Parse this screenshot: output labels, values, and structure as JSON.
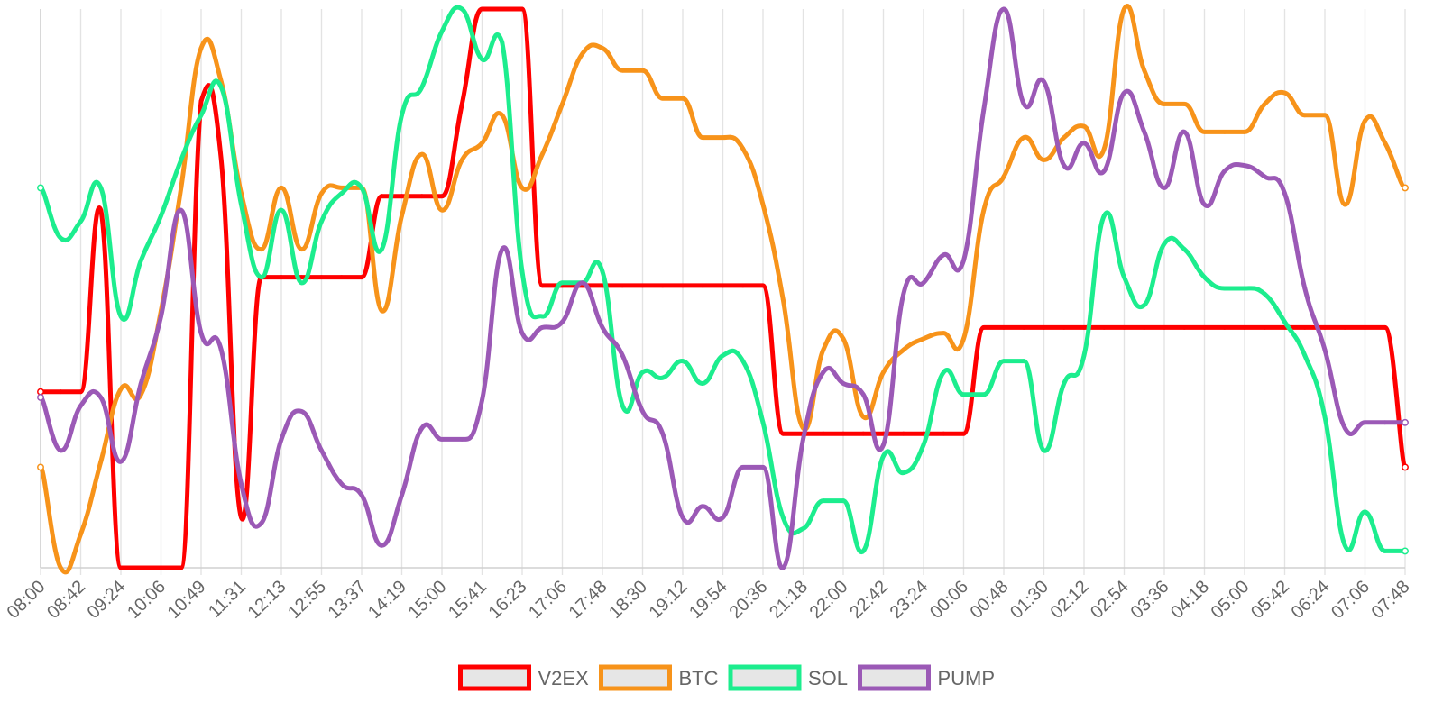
{
  "chart_data": {
    "type": "line",
    "title": "",
    "xlabel": "",
    "ylabel": "",
    "y_axis_visible": false,
    "ylim": [
      0,
      100
    ],
    "grid": "vertical",
    "legend_position": "bottom",
    "x": [
      "08:00",
      "08:21",
      "08:42",
      "09:03",
      "09:24",
      "09:45",
      "10:06",
      "10:27",
      "10:49",
      "11:10",
      "11:31",
      "11:52",
      "12:13",
      "12:34",
      "12:55",
      "13:16",
      "13:37",
      "13:58",
      "14:19",
      "14:40",
      "15:00",
      "15:20",
      "15:41",
      "16:02",
      "16:23",
      "16:44",
      "17:06",
      "17:27",
      "17:48",
      "18:09",
      "18:30",
      "18:51",
      "19:12",
      "19:33",
      "19:54",
      "20:15",
      "20:36",
      "20:57",
      "21:18",
      "21:39",
      "22:00",
      "22:21",
      "22:42",
      "23:03",
      "23:24",
      "23:45",
      "00:06",
      "00:27",
      "00:48",
      "01:09",
      "01:30",
      "01:51",
      "02:12",
      "02:33",
      "02:54",
      "03:15",
      "03:36",
      "03:57",
      "04:18",
      "04:39",
      "05:00",
      "05:21",
      "05:42",
      "06:03",
      "06:24",
      "06:45",
      "07:06",
      "07:27",
      "07:48"
    ],
    "x_tick_labels": [
      "08:00",
      "08:42",
      "09:24",
      "10:06",
      "10:49",
      "11:31",
      "12:13",
      "12:55",
      "13:37",
      "14:19",
      "15:00",
      "15:41",
      "16:23",
      "17:06",
      "17:48",
      "18:30",
      "19:12",
      "19:54",
      "20:36",
      "21:18",
      "22:00",
      "22:42",
      "23:24",
      "00:06",
      "00:48",
      "01:30",
      "02:12",
      "02:54",
      "03:36",
      "04:18",
      "05:00",
      "05:42",
      "06:24",
      "07:06",
      "07:48"
    ],
    "series": [
      {
        "name": "V2EX",
        "color": "#ff0000",
        "values": [
          31.5,
          31.5,
          31.5,
          64,
          0,
          0,
          0,
          0,
          83.5,
          73,
          9,
          52,
          52,
          52,
          52,
          52,
          52,
          66.5,
          66.5,
          66.5,
          66.5,
          83,
          100,
          100,
          100,
          50.5,
          50.5,
          50.5,
          50.5,
          50.5,
          50.5,
          50.5,
          50.5,
          50.5,
          50.5,
          50.5,
          50.5,
          24,
          24,
          24,
          24,
          24,
          24,
          24,
          24,
          24,
          24,
          43,
          43,
          43,
          43,
          43,
          43,
          43,
          43,
          43,
          43,
          43,
          43,
          43,
          43,
          43,
          43,
          43,
          43,
          43,
          43,
          43,
          18
        ]
      },
      {
        "name": "BTC",
        "color": "#f7931a",
        "values": [
          18,
          0,
          6,
          19,
          32,
          31,
          46,
          68,
          93,
          87,
          67,
          57,
          68,
          57,
          67,
          68,
          68,
          46,
          63,
          74,
          64,
          73,
          76,
          81,
          68,
          74,
          83,
          92,
          93,
          89,
          89,
          84,
          84,
          77,
          77,
          75,
          65,
          48,
          25,
          39,
          41,
          27,
          35,
          39,
          41,
          42,
          41,
          64,
          70,
          77,
          73,
          77,
          79,
          75,
          100,
          89,
          83,
          83,
          78,
          78,
          78,
          83,
          85,
          81,
          81,
          65,
          80,
          76,
          68
        ]
      },
      {
        "name": "SOL",
        "color": "#1ced8e",
        "values": [
          68,
          59,
          62,
          68,
          45,
          55,
          63,
          73,
          81,
          86,
          65,
          52,
          64,
          51,
          62,
          67,
          68,
          57,
          81,
          86,
          96,
          100,
          91,
          94,
          53,
          45,
          51,
          51,
          53,
          29,
          35,
          34,
          37,
          33,
          38,
          37,
          26,
          9,
          7,
          12,
          12,
          3,
          20,
          17,
          22,
          35,
          31,
          31,
          37,
          37,
          21,
          33,
          38,
          63,
          52,
          47,
          58,
          57,
          52,
          50,
          50,
          49,
          44,
          38,
          27,
          4,
          10,
          3,
          3
        ]
      },
      {
        "name": "PUMP",
        "color": "#9b59b6",
        "values": [
          30.5,
          21,
          29,
          30.5,
          19,
          33,
          45,
          64,
          42,
          39,
          15,
          8,
          23,
          28,
          21,
          15,
          13,
          4,
          13,
          25,
          23,
          23,
          30,
          57,
          42,
          43,
          44,
          51,
          43,
          38,
          28,
          24,
          9,
          11,
          9,
          18,
          18,
          0,
          23,
          35,
          33,
          31,
          22,
          49,
          51,
          56,
          55,
          82,
          100,
          83,
          87,
          72,
          76,
          71,
          85,
          78,
          68,
          78,
          65,
          71,
          72,
          70,
          67,
          50,
          39,
          25,
          26,
          26,
          26
        ]
      }
    ]
  }
}
